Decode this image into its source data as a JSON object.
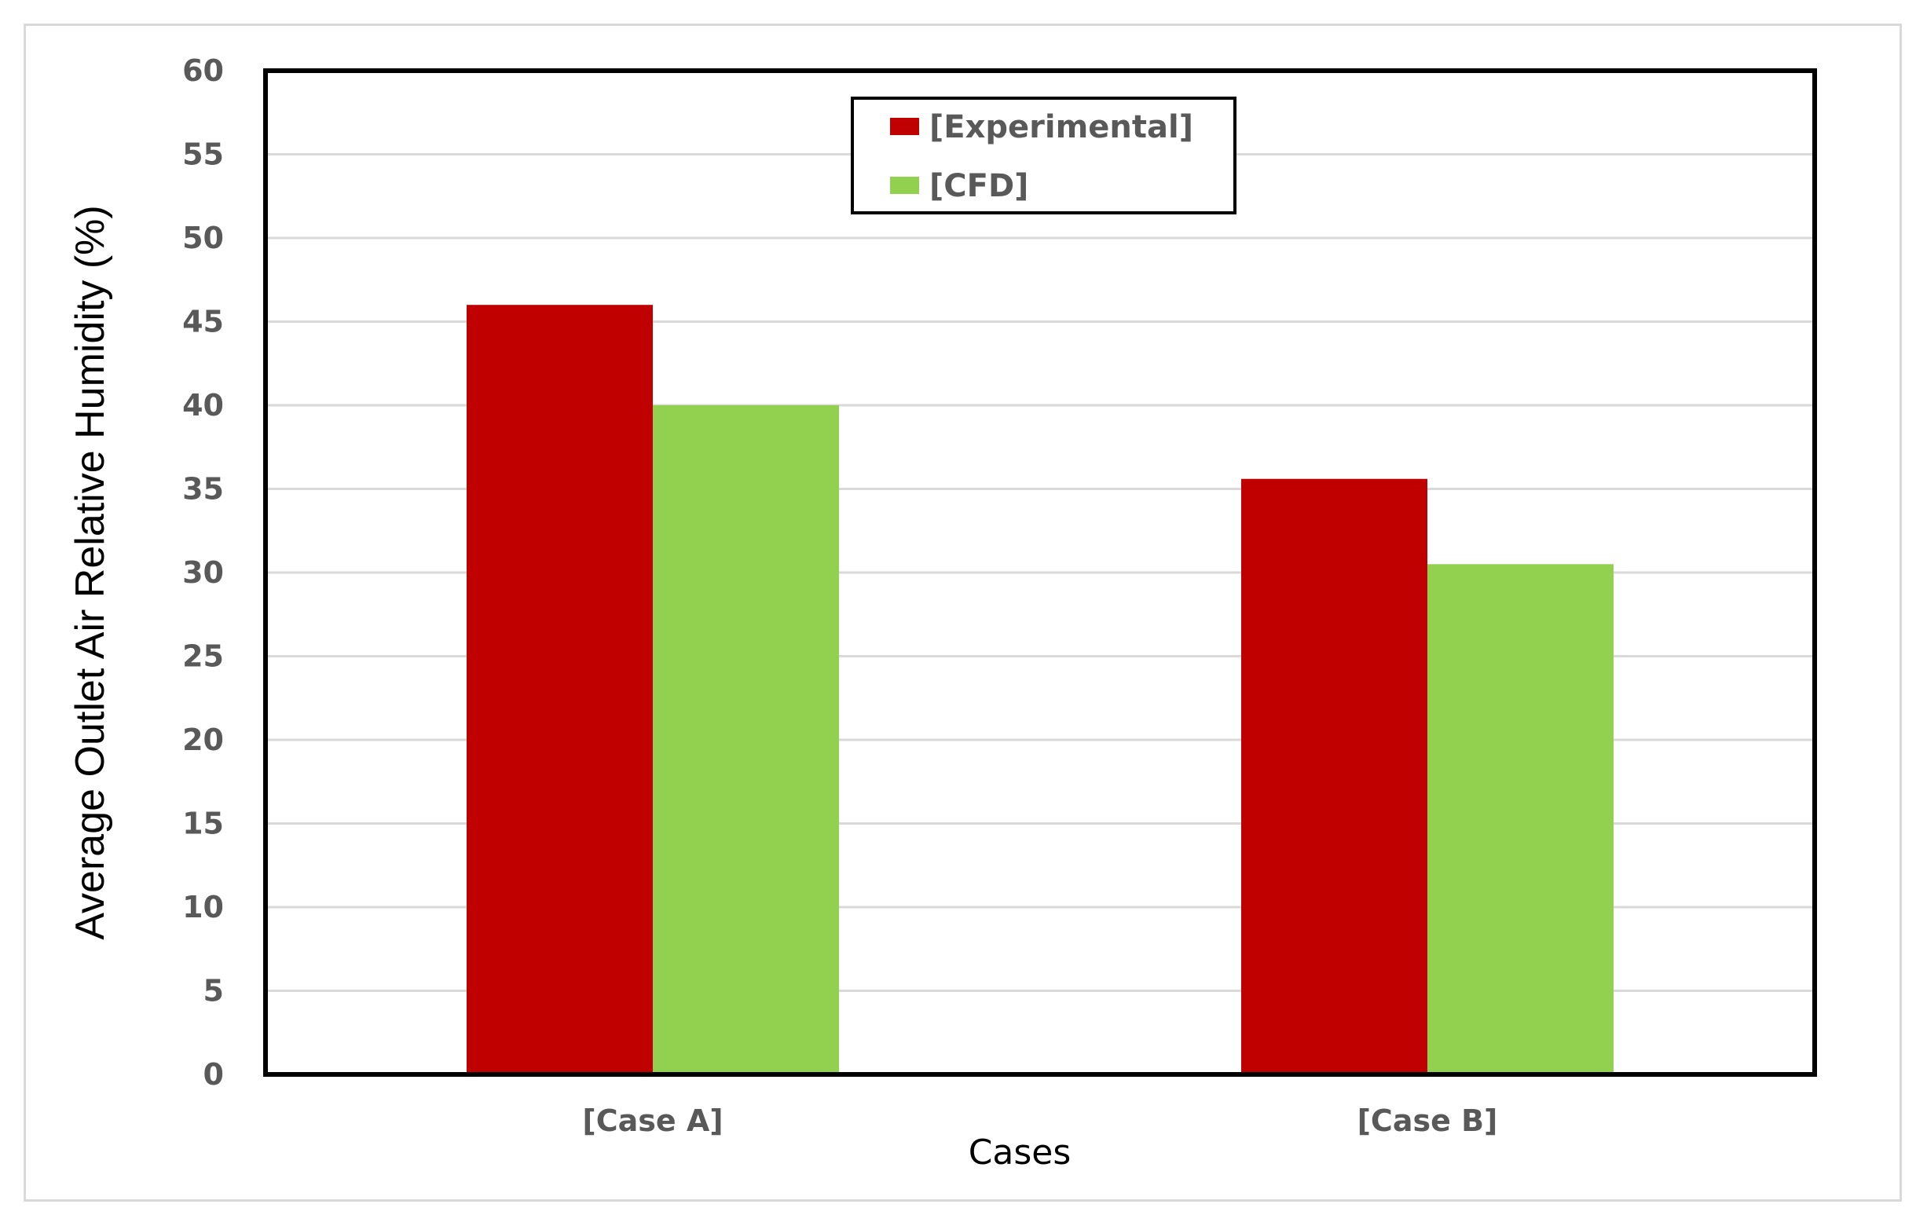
{
  "chart_data": {
    "type": "bar",
    "categories": [
      "[Case A]",
      "[Case B]"
    ],
    "series": [
      {
        "name": "[Experimental]",
        "values": [
          46,
          35.6
        ],
        "color": "#c00000"
      },
      {
        "name": "[CFD]",
        "values": [
          40,
          30.5
        ],
        "color": "#92d050"
      }
    ],
    "xlabel": "Cases",
    "ylabel": "Average Outlet Air Relative Humidity (%)",
    "ylim": [
      0,
      60
    ],
    "yticks": [
      0,
      5,
      10,
      15,
      20,
      25,
      30,
      35,
      40,
      45,
      50,
      55,
      60
    ],
    "grid": true,
    "legend": "top-center",
    "gridline_color": "#d9d9d9",
    "plot_border_color": "#000000"
  }
}
